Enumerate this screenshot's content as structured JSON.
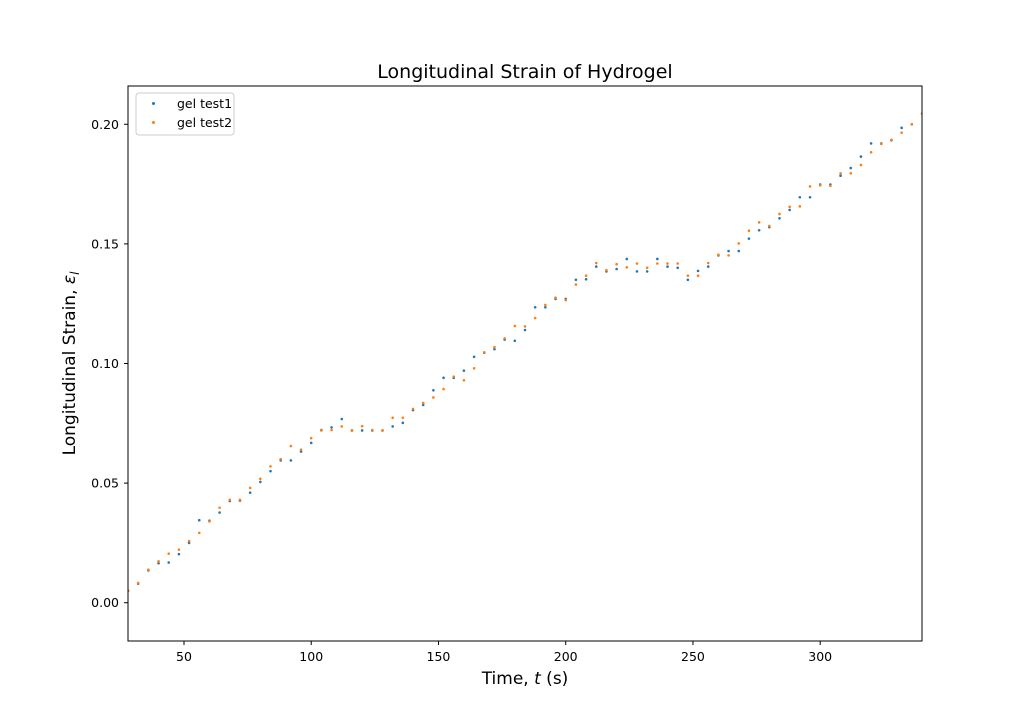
{
  "chart_data": {
    "type": "scatter",
    "title": "Longitudinal Strain of Hydrogel",
    "xlabel_prefix": "Time, ",
    "xlabel_var": "t",
    "xlabel_suffix": " (s)",
    "ylabel_prefix": "Longitudinal Strain, ",
    "ylabel_var": "ε",
    "ylabel_sub": "l",
    "xlim": [
      28,
      340
    ],
    "ylim": [
      -0.016,
      0.216
    ],
    "xticks": [
      50,
      100,
      150,
      200,
      250,
      300
    ],
    "xtick_labels": [
      "50",
      "100",
      "150",
      "200",
      "250",
      "300"
    ],
    "yticks": [
      0.0,
      0.05,
      0.1,
      0.15,
      0.2
    ],
    "ytick_labels": [
      "0.00",
      "0.05",
      "0.10",
      "0.15",
      "0.20"
    ],
    "grid": false,
    "legend_position": "top-left",
    "series": [
      {
        "name": "gel test1",
        "color": "#1f77b4",
        "x": [
          28,
          32,
          36,
          40,
          44,
          48,
          52,
          56,
          60,
          64,
          68,
          72,
          76,
          80,
          84,
          88,
          92,
          96,
          100,
          104,
          108,
          112,
          116,
          120,
          124,
          128,
          132,
          136,
          140,
          144,
          148,
          152,
          156,
          160,
          164,
          168,
          172,
          176,
          180,
          184,
          188,
          192,
          196,
          200,
          204,
          208,
          212,
          216,
          220,
          224,
          228,
          232,
          236,
          240,
          244,
          248,
          252,
          256,
          260,
          264,
          268,
          272,
          276,
          280,
          284,
          288,
          292,
          296,
          300,
          304,
          308,
          312,
          316,
          320,
          324,
          328,
          332,
          336
        ],
        "y": [
          0.005,
          0.008,
          0.0135,
          0.0165,
          0.0168,
          0.0203,
          0.025,
          0.0345,
          0.0343,
          0.0377,
          0.0425,
          0.0427,
          0.046,
          0.0505,
          0.055,
          0.0595,
          0.0595,
          0.0632,
          0.0668,
          0.0722,
          0.0733,
          0.0768,
          0.072,
          0.072,
          0.072,
          0.072,
          0.0737,
          0.0752,
          0.0805,
          0.0827,
          0.0888,
          0.094,
          0.094,
          0.097,
          0.1028,
          0.1045,
          0.106,
          0.11,
          0.1095,
          0.114,
          0.1235,
          0.1235,
          0.127,
          0.127,
          0.135,
          0.1352,
          0.1405,
          0.1385,
          0.1395,
          0.1437,
          0.1385,
          0.1385,
          0.1437,
          0.1405,
          0.14,
          0.135,
          0.1387,
          0.1405,
          0.1452,
          0.147,
          0.147,
          0.1522,
          0.1557,
          0.157,
          0.1607,
          0.1642,
          0.1695,
          0.1695,
          0.1748,
          0.1748,
          0.1785,
          0.1817,
          0.1865,
          0.192,
          0.192,
          0.1933,
          0.1985,
          0.2
        ]
      },
      {
        "name": "gel test2",
        "color": "#ff7f0e",
        "x": [
          28,
          32,
          36,
          40,
          44,
          48,
          52,
          56,
          60,
          64,
          68,
          72,
          76,
          80,
          84,
          88,
          92,
          96,
          100,
          104,
          108,
          112,
          116,
          120,
          124,
          128,
          132,
          136,
          140,
          144,
          148,
          152,
          156,
          160,
          164,
          168,
          172,
          176,
          180,
          184,
          188,
          192,
          196,
          200,
          204,
          208,
          212,
          216,
          220,
          224,
          228,
          232,
          236,
          240,
          244,
          248,
          252,
          256,
          260,
          264,
          268,
          272,
          276,
          280,
          284,
          288,
          292,
          296,
          300,
          304,
          308,
          312,
          316,
          320,
          324,
          328,
          332,
          336,
          340
        ],
        "y": [
          0.005,
          0.0083,
          0.0138,
          0.0173,
          0.0205,
          0.0222,
          0.0258,
          0.0292,
          0.034,
          0.0397,
          0.043,
          0.043,
          0.048,
          0.0518,
          0.057,
          0.06,
          0.0655,
          0.064,
          0.0688,
          0.072,
          0.0722,
          0.0737,
          0.072,
          0.0738,
          0.0722,
          0.072,
          0.0773,
          0.0773,
          0.081,
          0.0835,
          0.0858,
          0.0893,
          0.0945,
          0.093,
          0.098,
          0.1047,
          0.1068,
          0.1105,
          0.1157,
          0.1155,
          0.119,
          0.1245,
          0.1275,
          0.1265,
          0.133,
          0.1367,
          0.142,
          0.139,
          0.1415,
          0.1402,
          0.1418,
          0.14,
          0.1418,
          0.1418,
          0.1418,
          0.1367,
          0.1367,
          0.142,
          0.1455,
          0.1452,
          0.1502,
          0.1555,
          0.159,
          0.1575,
          0.1625,
          0.1655,
          0.1657,
          0.174,
          0.1745,
          0.1743,
          0.1795,
          0.1795,
          0.183,
          0.1883,
          0.1918,
          0.1935,
          0.1965,
          0.2,
          0.2045
        ]
      }
    ]
  }
}
